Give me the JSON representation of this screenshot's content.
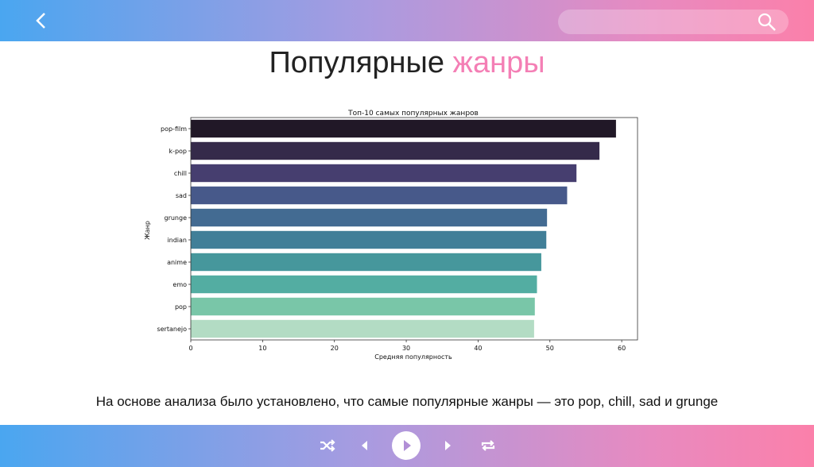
{
  "header": {
    "back_icon": "chevron-left-icon",
    "search_placeholder": "",
    "search_icon": "search-icon"
  },
  "slide": {
    "title_main": "Популярные ",
    "title_accent": "жанры",
    "accent_color": "#f47fb5",
    "caption": "На основе анализа было установлено, что самые популярные жанры — это pop, chill, sad и grunge"
  },
  "player": {
    "controls": [
      "shuffle-icon",
      "previous-icon",
      "play-icon",
      "next-icon",
      "repeat-icon"
    ]
  },
  "chart_data": {
    "type": "bar",
    "orientation": "horizontal",
    "title": "Топ-10 самых популярных жанров",
    "xlabel": "Средняя популярность",
    "ylabel": "Жанр",
    "categories": [
      "pop-film",
      "k-pop",
      "chill",
      "sad",
      "grunge",
      "indian",
      "anime",
      "emo",
      "pop",
      "sertanejo"
    ],
    "values": [
      59.2,
      56.9,
      53.7,
      52.4,
      49.6,
      49.5,
      48.8,
      48.2,
      47.9,
      47.8
    ],
    "colors": [
      "#211827",
      "#352a4a",
      "#463e6f",
      "#47598a",
      "#436b92",
      "#417f98",
      "#46979c",
      "#53ada2",
      "#79c6a8",
      "#b3dcc4"
    ],
    "xlim": [
      0,
      62.2
    ],
    "xticks": [
      "0",
      "10",
      "20",
      "30",
      "40",
      "50",
      "60"
    ],
    "grid": false
  }
}
